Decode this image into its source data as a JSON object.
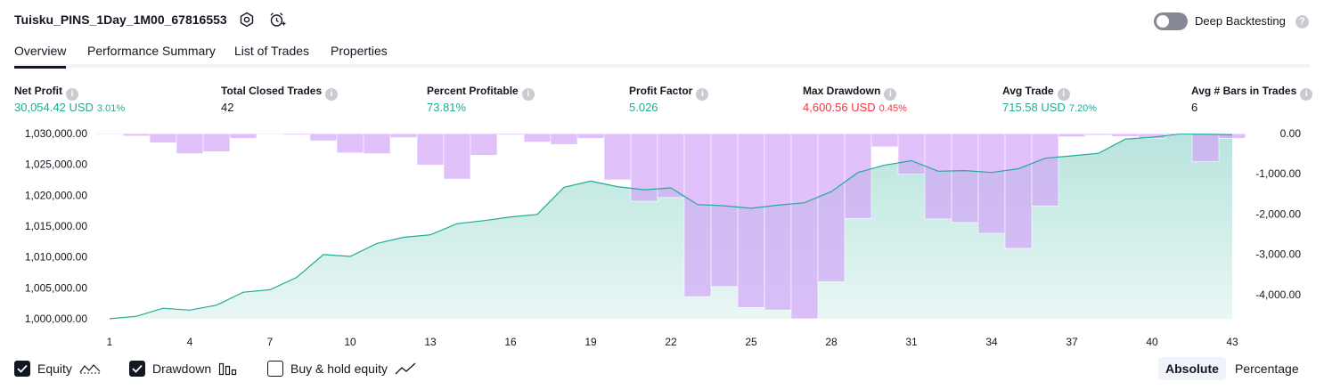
{
  "header": {
    "strategy_title": "Tuisku_PINS_1Day_1M00_67816553",
    "settings_icon": "gear-icon",
    "alert_icon": "alarm-add-icon",
    "deep_backtesting_label": "Deep Backtesting",
    "deep_backtesting_enabled": false,
    "help_icon": "question-icon",
    "help_glyph": "?"
  },
  "tabs": [
    {
      "label": "Overview",
      "active": true
    },
    {
      "label": "Performance Summary",
      "active": false
    },
    {
      "label": "List of Trades",
      "active": false
    },
    {
      "label": "Properties",
      "active": false
    }
  ],
  "metrics": [
    {
      "label": "Net Profit",
      "value": "30,054.42 USD",
      "sub": "3.01%",
      "color": "#22ab94"
    },
    {
      "label": "Total Closed Trades",
      "value": "42",
      "sub": "",
      "color": "#131722"
    },
    {
      "label": "Percent Profitable",
      "value": "73.81%",
      "sub": "",
      "color": "#22ab94"
    },
    {
      "label": "Profit Factor",
      "value": "5.026",
      "sub": "",
      "color": "#22ab94"
    },
    {
      "label": "Max Drawdown",
      "value": "4,600.56 USD",
      "sub": "0.45%",
      "color": "#f23645"
    },
    {
      "label": "Avg Trade",
      "value": "715.58 USD",
      "sub": "7.20%",
      "color": "#22ab94"
    },
    {
      "label": "Avg # Bars in Trades",
      "value": "6",
      "sub": "",
      "color": "#131722"
    }
  ],
  "chart_data": {
    "type": "area",
    "x": [
      1,
      2,
      3,
      4,
      5,
      6,
      7,
      8,
      9,
      10,
      11,
      12,
      13,
      14,
      15,
      16,
      17,
      18,
      19,
      20,
      21,
      22,
      23,
      24,
      25,
      26,
      27,
      28,
      29,
      30,
      31,
      32,
      33,
      34,
      35,
      36,
      37,
      38,
      39,
      40,
      41,
      42,
      43
    ],
    "x_tick_labels": [
      "1",
      "4",
      "7",
      "10",
      "13",
      "16",
      "19",
      "22",
      "25",
      "28",
      "31",
      "34",
      "37",
      "40",
      "43"
    ],
    "x_ticks": [
      1,
      4,
      7,
      10,
      13,
      16,
      19,
      22,
      25,
      28,
      31,
      34,
      37,
      40,
      43
    ],
    "series": [
      {
        "role": "equity",
        "axis": "left",
        "color": "#22ab94",
        "values": [
          1000000,
          1000400,
          1001700,
          1001400,
          1002200,
          1004300,
          1004700,
          1006700,
          1010400,
          1010100,
          1012200,
          1013200,
          1013600,
          1015400,
          1015900,
          1016500,
          1016900,
          1021300,
          1022300,
          1021400,
          1020900,
          1021200,
          1018500,
          1018300,
          1017900,
          1018400,
          1018800,
          1020600,
          1023700,
          1024900,
          1025600,
          1023900,
          1024000,
          1023700,
          1024300,
          1026000,
          1026400,
          1026800,
          1029100,
          1029400,
          1029900,
          1029900,
          1029800
        ]
      },
      {
        "role": "drawdown",
        "axis": "right",
        "color": "#d1a3f7",
        "overlap_color": "#b5aef0",
        "values": [
          -20,
          -60,
          -230,
          -500,
          -450,
          -120,
          -20,
          -30,
          -180,
          -480,
          -500,
          -100,
          -780,
          -1130,
          -540,
          -30,
          -210,
          -270,
          -120,
          -1150,
          -1680,
          -1590,
          -4050,
          -3800,
          -4320,
          -4380,
          -4600,
          -3680,
          -2110,
          -330,
          -1010,
          -2120,
          -2210,
          -2480,
          -2850,
          -1800,
          -80,
          -40,
          -70,
          -120,
          -30,
          -700,
          -120
        ]
      }
    ],
    "y_left_ticks": [
      "1,030,000.00",
      "1,025,000.00",
      "1,020,000.00",
      "1,015,000.00",
      "1,010,000.00",
      "1,005,000.00",
      "1,000,000.00"
    ],
    "y_left_tick_values": [
      1030000,
      1025000,
      1020000,
      1015000,
      1010000,
      1005000,
      1000000
    ],
    "ylim_left": [
      1000000,
      1030000
    ],
    "y_right_ticks": [
      "0.00",
      "-1,000.00",
      "-2,000.00",
      "-3,000.00",
      "-4,000.00"
    ],
    "y_right_tick_values": [
      0,
      -1000,
      -2000,
      -3000,
      -4000
    ],
    "ylim_right": [
      -4600,
      0
    ]
  },
  "legend": {
    "items": [
      {
        "label": "Equity",
        "checked": true,
        "icon": "equity-line-icon"
      },
      {
        "label": "Drawdown",
        "checked": true,
        "icon": "drawdown-bars-icon"
      },
      {
        "label": "Buy & hold equity",
        "checked": false,
        "icon": "buy-hold-line-icon"
      }
    ],
    "modes": [
      {
        "label": "Absolute",
        "active": true
      },
      {
        "label": "Percentage",
        "active": false
      }
    ]
  }
}
